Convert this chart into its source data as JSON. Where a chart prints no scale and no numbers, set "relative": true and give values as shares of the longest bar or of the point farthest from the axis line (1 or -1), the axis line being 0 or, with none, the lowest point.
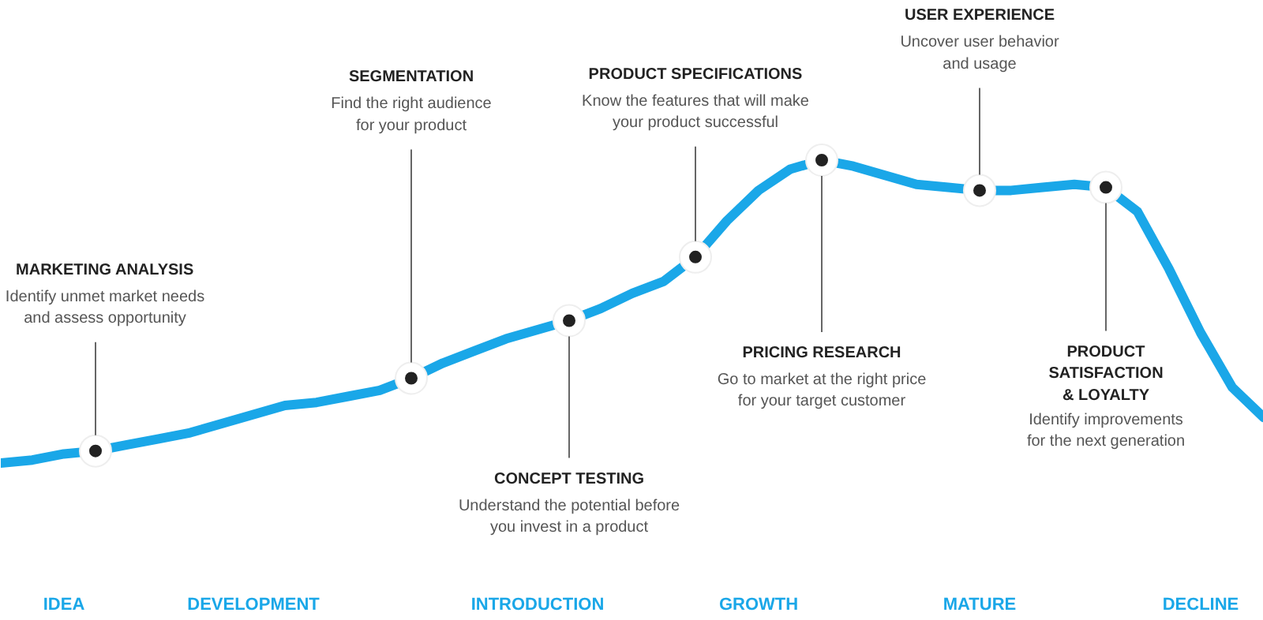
{
  "chart_data": {
    "type": "line",
    "relative": true,
    "categories": [
      null,
      null,
      "IDEA",
      null,
      null,
      null,
      null,
      null,
      "DEVELOPMENT",
      null,
      null,
      null,
      null,
      null,
      null,
      null,
      null,
      "INTRODUCTION",
      null,
      null,
      null,
      null,
      null,
      null,
      "GROWTH",
      null,
      null,
      null,
      null,
      null,
      null,
      "MATURE",
      null,
      null,
      null,
      null,
      null,
      null,
      "DECLINE",
      null,
      null
    ],
    "series": [
      {
        "color": "#1aa7e8",
        "values": [
          0,
          0.01,
          0.03,
          0.04,
          0.06,
          0.08,
          0.1,
          0.13,
          0.16,
          0.19,
          0.2,
          0.22,
          0.24,
          0.28,
          0.33,
          0.37,
          0.41,
          0.44,
          0.47,
          0.51,
          0.56,
          0.6,
          0.68,
          0.8,
          0.9,
          0.97,
          1,
          0.98,
          0.95,
          0.92,
          0.91,
          0.9,
          0.9,
          0.91,
          0.92,
          0.91,
          0.83,
          0.64,
          0.43,
          0.25,
          0.15
        ]
      },
      {
        "type": "scatter",
        "color": "#222222",
        "values": [
          null,
          null,
          null,
          0.04,
          null,
          null,
          null,
          null,
          null,
          null,
          null,
          null,
          null,
          0.28,
          null,
          null,
          null,
          null,
          0.47,
          null,
          null,
          null,
          0.68,
          null,
          null,
          null,
          1,
          null,
          null,
          null,
          null,
          0.9,
          null,
          null,
          null,
          0.91,
          null,
          null,
          null,
          null,
          null
        ]
      }
    ],
    "line_style": "solid",
    "annotations": [
      "MARKETING ANALYSIS",
      "Identify unmet market needs\nand assess opportunity",
      "SEGMENTATION",
      "Find the right audience\nfor your product",
      "CONCEPT TESTING",
      "Understand the potential before\nyou invest in a product",
      "PRODUCT SPECIFICATIONS",
      "Know the features that will make\nyour product successful",
      "PRICING RESEARCH",
      "Go to market at the right price\nfor your target customer",
      "USER EXPERIENCE",
      "Uncover user behavior\nand usage",
      "PRODUCT\nSATISFACTION\n& LOYALTY",
      "Identify improvements\nfor the next generation"
    ]
  }
}
